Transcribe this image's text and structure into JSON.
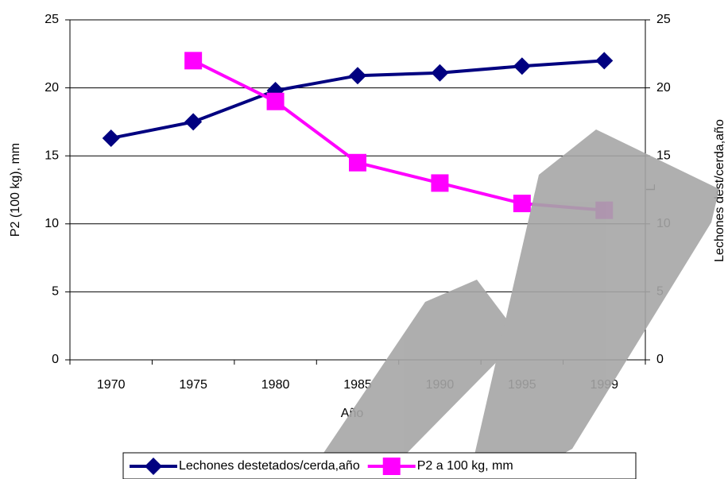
{
  "chart_data": {
    "type": "line",
    "categories": [
      "1970",
      "1975",
      "1980",
      "1985",
      "1990",
      "1995",
      "1999"
    ],
    "series": [
      {
        "name": "Lechones destetados/cerda,año",
        "color": "#000080",
        "marker": "diamond",
        "axis": "y2",
        "values": [
          16.3,
          17.5,
          19.8,
          20.9,
          21.1,
          21.6,
          22.0
        ]
      },
      {
        "name": "P2 a 100 kg, mm",
        "color": "#ff00ff",
        "marker": "square",
        "values": [
          null,
          22,
          19,
          14.5,
          13,
          11.5,
          11
        ]
      }
    ],
    "xlabel": "Año",
    "ylabel": "P2 (100 kg), mm",
    "y2label": "Lechones dest/cerda,año",
    "annotation": "L",
    "ylim": [
      0,
      25
    ],
    "yticks": [
      0,
      5,
      10,
      15,
      20,
      25
    ],
    "y2lim": [
      0,
      25
    ],
    "y2ticks": [
      0,
      5,
      10,
      15,
      20,
      25
    ],
    "grid": true,
    "legend": "bottom"
  }
}
